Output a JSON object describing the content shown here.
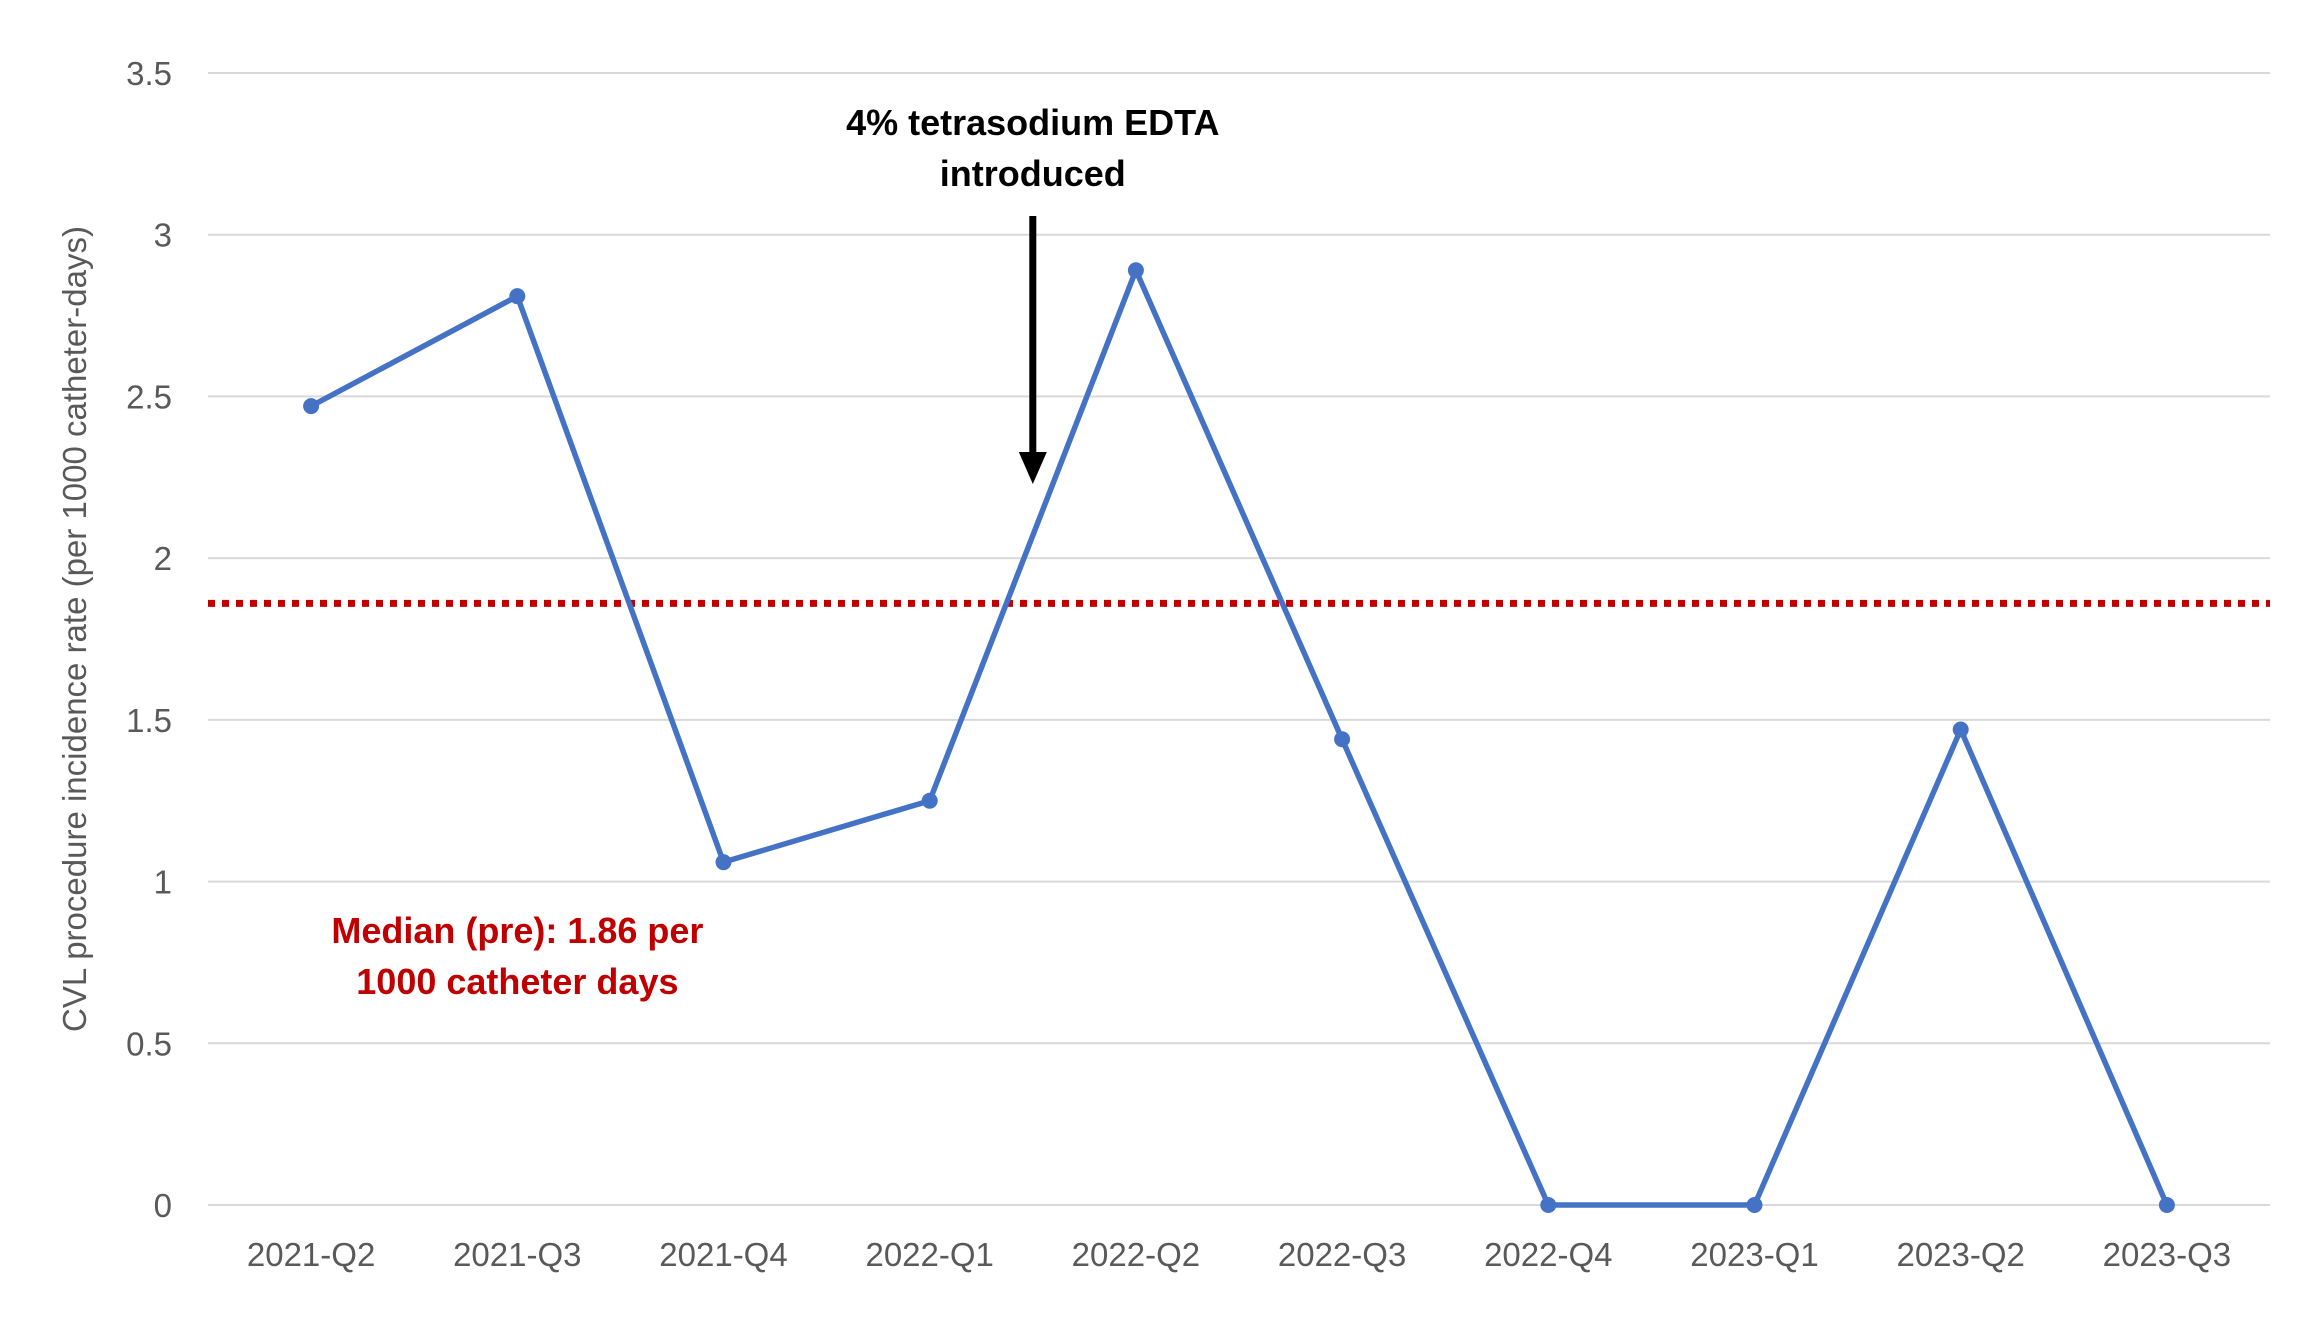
{
  "chart_data": {
    "type": "line",
    "title": "",
    "xlabel": "",
    "ylabel": "CVL procedure incidence rate (per 1000 catheter-days)",
    "categories": [
      "2021-Q2",
      "2021-Q3",
      "2021-Q4",
      "2022-Q1",
      "2022-Q2",
      "2022-Q3",
      "2022-Q4",
      "2023-Q1",
      "2023-Q2",
      "2023-Q3"
    ],
    "series": [
      {
        "values": [
          2.47,
          2.81,
          1.06,
          1.25,
          2.89,
          1.44,
          0,
          0,
          1.47,
          0
        ],
        "color": "#4472C4"
      }
    ],
    "yticks": [
      "0",
      "0.5",
      "1",
      "1.5",
      "2",
      "2.5",
      "3",
      "3.5"
    ],
    "ylim": [
      0,
      3.5
    ],
    "grid": true,
    "median_line": {
      "value": 1.86,
      "color": "#C00000",
      "style": "dotted"
    },
    "annotations": {
      "intervention": {
        "line1": "4% tetrasodium EDTA",
        "line2": "introduced",
        "color": "#000000",
        "between_categories": [
          "2022-Q1",
          "2022-Q2"
        ]
      },
      "median_label": {
        "line1": "Median (pre): 1.86 per",
        "line2": "1000 catheter days",
        "color": "#C00000"
      }
    }
  }
}
